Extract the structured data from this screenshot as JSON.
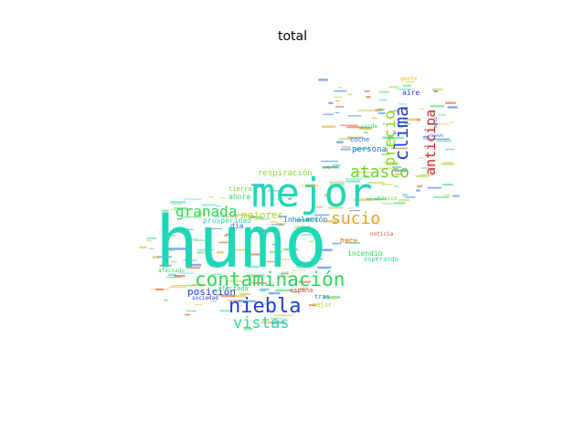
{
  "title": "total",
  "words": [
    {
      "text": "humo",
      "color": "#1fd8b8"
    },
    {
      "text": "mejor",
      "color": "#1fd8b8"
    },
    {
      "text": "contaminación",
      "color": "#2ed65a"
    },
    {
      "text": "niebla",
      "color": "#1f3fd8"
    },
    {
      "text": "vistas",
      "color": "#2ed6a0"
    },
    {
      "text": "atasco",
      "color": "#6ed62a"
    },
    {
      "text": "clima",
      "color": "#1f3fd8"
    },
    {
      "text": "precio",
      "color": "#8ed62a"
    },
    {
      "text": "anticipa",
      "color": "#d81f1f"
    },
    {
      "text": "sucio",
      "color": "#e8a01f"
    },
    {
      "text": "granada",
      "color": "#2ed65a"
    },
    {
      "text": "mejores",
      "color": "#b8d62a"
    },
    {
      "text": "posición",
      "color": "#1f3fd8"
    },
    {
      "text": "respiración",
      "color": "#8ed62a"
    },
    {
      "text": "prosperidad",
      "color": "#2ed6a0"
    },
    {
      "text": "inhalación",
      "color": "#1f6fd8"
    },
    {
      "text": "tierra",
      "color": "#6ed62a"
    },
    {
      "text": "ahora",
      "color": "#2ed65a"
    },
    {
      "text": "hace",
      "color": "#e87a1f"
    },
    {
      "text": "incendio",
      "color": "#2ed65a"
    },
    {
      "text": "persona",
      "color": "#1f6fd8"
    },
    {
      "text": "coche",
      "color": "#1f6fd8"
    },
    {
      "text": "aire",
      "color": "#1f3fd8"
    },
    {
      "text": "gente",
      "color": "#e8c01f"
    },
    {
      "text": "afectada",
      "color": "#2ed65a"
    },
    {
      "text": "españa",
      "color": "#d84a1f"
    },
    {
      "text": "tras",
      "color": "#1f6fd8"
    },
    {
      "text": "mejor",
      "color": "#b8d62a"
    },
    {
      "text": "sociedad",
      "color": "#1f3fd8"
    },
    {
      "text": "esperando",
      "color": "#2ed6a0"
    },
    {
      "text": "día",
      "color": "#1f6fd8"
    },
    {
      "text": "noticia",
      "color": "#d84a1f"
    },
    {
      "text": "tóxico",
      "color": "#6ed62a"
    },
    {
      "text": "verde",
      "color": "#2ed65a"
    },
    {
      "text": "afectado",
      "color": "#2ed65a"
    },
    {
      "text": "nuevo",
      "color": "#1f6fd8"
    },
    {
      "text": "ciudad",
      "color": "#e8c01f"
    },
    {
      "text": "calor",
      "color": "#2ed65a"
    },
    {
      "text": "sol",
      "color": "#2ed65a"
    },
    {
      "text": "alto",
      "color": "#1f6fd8"
    }
  ]
}
